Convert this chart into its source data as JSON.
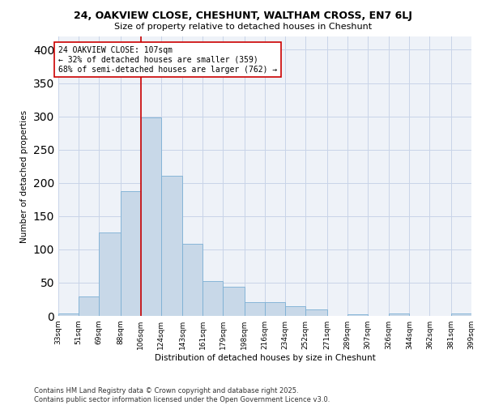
{
  "title1": "24, OAKVIEW CLOSE, CHESHUNT, WALTHAM CROSS, EN7 6LJ",
  "title2": "Size of property relative to detached houses in Cheshunt",
  "xlabel": "Distribution of detached houses by size in Cheshunt",
  "ylabel": "Number of detached properties",
  "bar_color": "#c8d8e8",
  "bar_edge_color": "#7bafd4",
  "bins": [
    33,
    51,
    69,
    88,
    106,
    124,
    143,
    161,
    179,
    198,
    216,
    234,
    252,
    271,
    289,
    307,
    326,
    344,
    362,
    381,
    399
  ],
  "counts": [
    4,
    29,
    126,
    188,
    298,
    211,
    108,
    52,
    44,
    21,
    21,
    15,
    10,
    0,
    3,
    0,
    4,
    0,
    0,
    4
  ],
  "tick_labels": [
    "33sqm",
    "51sqm",
    "69sqm",
    "88sqm",
    "106sqm",
    "124sqm",
    "143sqm",
    "161sqm",
    "179sqm",
    "198sqm",
    "216sqm",
    "234sqm",
    "252sqm",
    "271sqm",
    "289sqm",
    "307sqm",
    "326sqm",
    "344sqm",
    "362sqm",
    "381sqm",
    "399sqm"
  ],
  "property_line_x": 106,
  "annotation_text": "24 OAKVIEW CLOSE: 107sqm\n← 32% of detached houses are smaller (359)\n68% of semi-detached houses are larger (762) →",
  "annotation_box_color": "#ffffff",
  "annotation_box_edge": "#cc0000",
  "red_line_color": "#cc0000",
  "ylim": [
    0,
    420
  ],
  "yticks": [
    0,
    50,
    100,
    150,
    200,
    250,
    300,
    350,
    400
  ],
  "grid_color": "#c8d4e8",
  "bg_color": "#eef2f8",
  "footnote1": "Contains HM Land Registry data © Crown copyright and database right 2025.",
  "footnote2": "Contains public sector information licensed under the Open Government Licence v3.0."
}
